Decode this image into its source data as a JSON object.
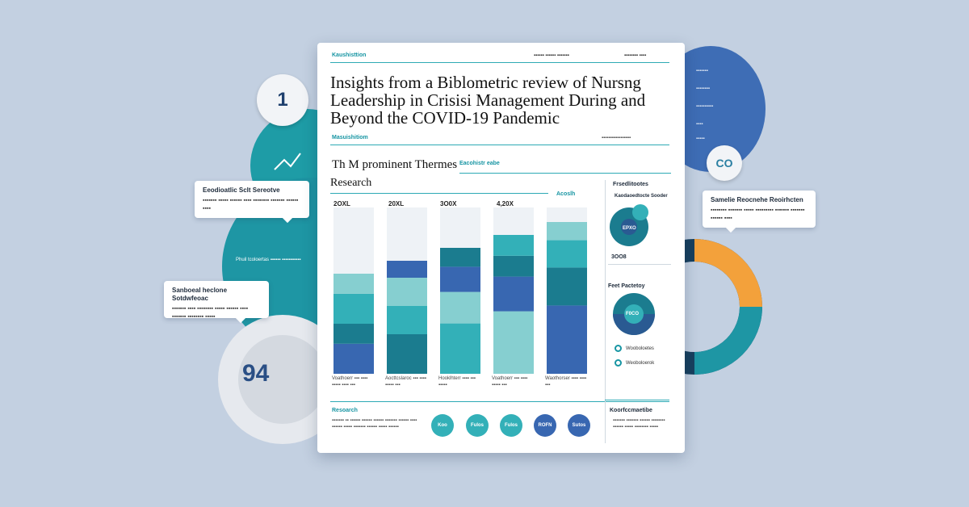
{
  "document": {
    "header_left": "Kaushisttion",
    "header_right_1": "▪▪▪▪▪▪ ▪▪▪▪▪▪ ▪▪▪▪▪▪▪",
    "header_right_2": "▪▪▪▪▪▪▪▪ ▪▪▪▪",
    "title": "Insights from a Biblometric review of Nursng Leadership in Crisisi Management During and Beyond the COVID-19 Pandemic",
    "section_label": "Masuishitiom",
    "section_right": "▪▪▪▪▪▪▪▪▪▪▪▪▪▪▪▪▪",
    "themes_heading": "Th M prominent Thermes",
    "themes_tag": "Eacohistr eabe",
    "research_heading": "Research",
    "bars_top_label": "Acoslh",
    "years": [
      "2OXL",
      "20XL",
      "3O0X",
      "4,20X",
      ""
    ],
    "bar_footers": [
      "Voathoerr ▪▪▪ ▪▪▪▪ ▪▪▪▪▪ ▪▪▪▪ ▪▪▪",
      "Aocttcslaroc ▪▪▪ ▪▪▪▪ ▪▪▪▪▪ ▪▪▪",
      "Hooklhterr ▪▪▪▪ ▪▪▪ ▪▪▪▪▪",
      "Voathoerr ▪▪▪ ▪▪▪▪ ▪▪▪▪▪ ▪▪▪",
      "Waothorser ▪▪▪▪ ▪▪▪▪ ▪▪▪"
    ],
    "bottom_label": "Resoarch",
    "bottom_text": "▪▪▪▪▪▪▪ ▪▪ ▪▪▪▪▪▪ ▪▪▪▪▪▪ ▪▪▪▪▪▪ ▪▪▪▪▪▪▪ ▪▪▪▪▪▪ ▪▪▪▪ ▪▪▪▪▪▪ ▪▪▪▪▪ ▪▪▪▪▪▪▪ ▪▪▪▪▪▪ ▪▪▪▪▪ ▪▪▪▪▪▪",
    "circles": [
      "Koo",
      "Fulos",
      "Fulos",
      "ROFN",
      "Sutos"
    ],
    "side_panel_1_title": "Frsedlitootes",
    "side_panel_1_sub": "Kaodaoedtocte Sooder",
    "side_panel_1_center": "EPXO",
    "side_panel_1_value": "3OO8",
    "side_panel_2_title": "Feet Pactetoy",
    "side_panel_2_center": "F0CO",
    "side_legend": [
      "Wooboloetes",
      "Weoboloerok"
    ],
    "side_panel_3_title": "Koorfccmaetibe",
    "side_panel_3_text": "▪▪▪▪▪▪▪ ▪▪▪▪▪▪▪ ▪▪▪▪▪▪ ▪▪▪▪▪▪▪▪ ▪▪▪▪▪▪ ▪▪▪▪▪ ▪▪▪▪▪▪▪▪ ▪▪▪▪▪"
  },
  "callouts": {
    "left_top_title": "Eeodioatlic Sclt Sereotve",
    "left_top_text": "▪▪▪▪▪▪▪ ▪▪▪▪▪ ▪▪▪▪▪▪ ▪▪▪▪ ▪▪▪▪▪▪▪▪ ▪▪▪▪▪▪▪ ▪▪▪▪▪▪ ▪▪▪▪",
    "left_mid_title": "Sanboeal heclone Sotdwfeoac",
    "left_mid_text": "▪▪▪▪▪▪▪ ▪▪▪▪ ▪▪▪▪▪▪▪▪ ▪▪▪▪▪ ▪▪▪▪▪▪ ▪▪▪▪ ▪▪▪▪▪▪▪ ▪▪▪▪▪▪▪▪ ▪▪▪▪▪",
    "right_title": "Samelie Reocnehe Reoirhcten",
    "right_text": "▪▪▪▪▪▪▪▪ ▪▪▪▪▪▪▪ ▪▪▪▪▪ ▪▪▪▪▪▪▪▪▪ ▪▪▪▪▪▪▪ ▪▪▪▪▪▪▪ ▪▪▪▪▪▪ ▪▪▪▪"
  },
  "decor": {
    "pin_number": "1",
    "big_number": "94",
    "right_pin": "CO",
    "left_circle_label": "Phuil tcoloertas ▪▪▪▪▪▪ ▪▪▪▪▪▪▪▪▪▪▪",
    "right_blob_lines": [
      "▪▪▪▪▪▪▪",
      "▪▪▪▪▪▪▪▪",
      "▪▪▪▪▪▪▪▪▪▪",
      "▪▪▪▪",
      "▪▪▪▪▪"
    ]
  },
  "chart_data": {
    "type": "bar",
    "stacked": true,
    "categories": [
      "2OXL",
      "20XL",
      "3O0X",
      "4,20X",
      "Acoslh"
    ],
    "series": [
      {
        "values": [
          30,
          35,
          40,
          45,
          45
        ]
      },
      {
        "values": [
          20,
          25,
          25,
          25,
          25
        ]
      },
      {
        "values": [
          30,
          25,
          20,
          15,
          18
        ]
      },
      {
        "values": [
          20,
          15,
          15,
          15,
          12
        ]
      }
    ],
    "colors": [
      "#3867b1",
      "#1b7c8f",
      "#33b0b8",
      "#86cfd0"
    ]
  }
}
